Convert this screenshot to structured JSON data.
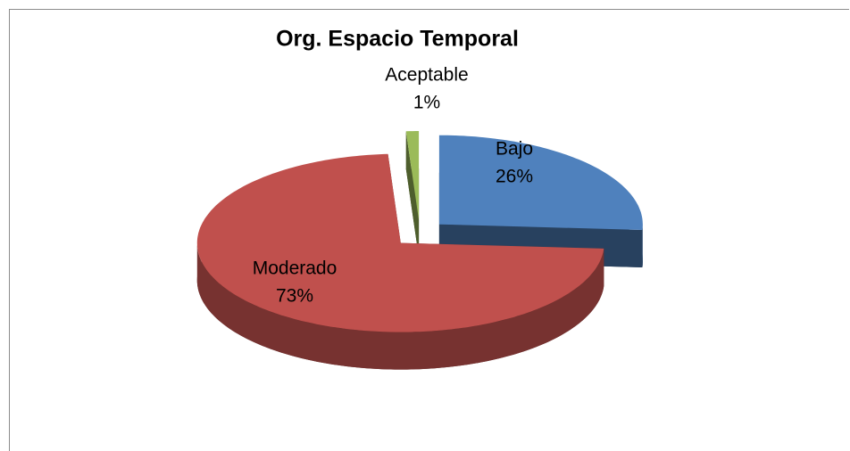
{
  "chart_data": {
    "type": "pie",
    "title": "Org. Espacio Temporal",
    "categories": [
      "Bajo",
      "Moderado",
      "Aceptable"
    ],
    "values": [
      26,
      73,
      1
    ],
    "value_labels": [
      "26%",
      "73%",
      "1%"
    ],
    "colors": [
      "#4f81bd",
      "#c0504d",
      "#9bbb59"
    ]
  }
}
